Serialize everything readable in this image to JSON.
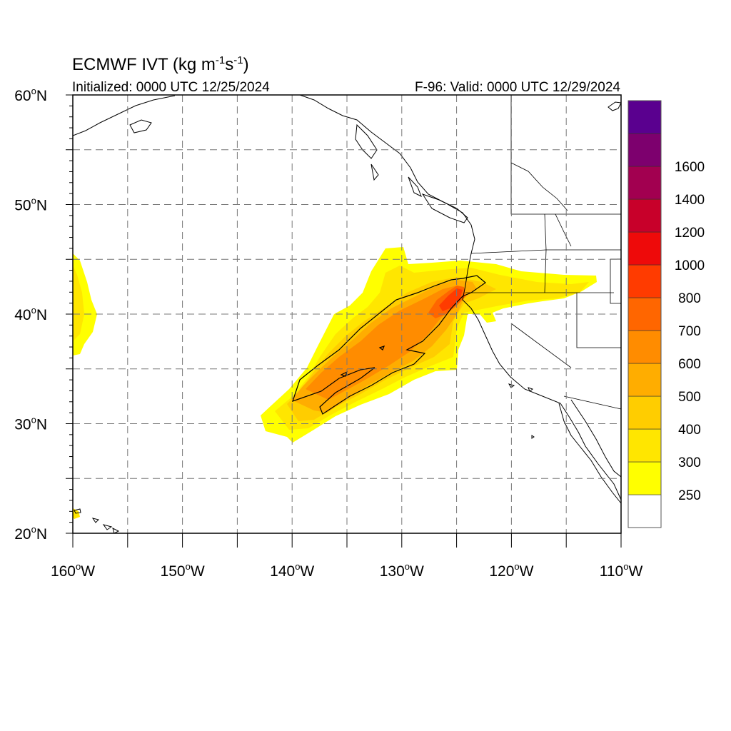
{
  "title": {
    "main": "ECMWF IVT (kg m",
    "sup1": "-1",
    "mid": "s",
    "sup2": "-1",
    "close": ")"
  },
  "subtitle_left": "Initialized: 0000 UTC 12/25/2024",
  "subtitle_right": "F-96: Valid: 0000 UTC 12/29/2024",
  "lat_labels": [
    {
      "value": 60,
      "main": "60",
      "deg": "o",
      "hemi": "N"
    },
    {
      "value": 50,
      "main": "50",
      "deg": "o",
      "hemi": "N"
    },
    {
      "value": 40,
      "main": "40",
      "deg": "o",
      "hemi": "N"
    },
    {
      "value": 30,
      "main": "30",
      "deg": "o",
      "hemi": "N"
    },
    {
      "value": 20,
      "main": "20",
      "deg": "o",
      "hemi": "N"
    }
  ],
  "lon_labels": [
    {
      "value": -160,
      "main": "160",
      "deg": "o",
      "hemi": "W"
    },
    {
      "value": -150,
      "main": "150",
      "deg": "o",
      "hemi": "W"
    },
    {
      "value": -140,
      "main": "140",
      "deg": "o",
      "hemi": "W"
    },
    {
      "value": -130,
      "main": "130",
      "deg": "o",
      "hemi": "W"
    },
    {
      "value": -120,
      "main": "120",
      "deg": "o",
      "hemi": "W"
    },
    {
      "value": -110,
      "main": "110",
      "deg": "o",
      "hemi": "W"
    }
  ],
  "colorbar": {
    "colors_bottom_to_top": [
      "#ffffff",
      "#ffff00",
      "#ffe600",
      "#ffcd00",
      "#ffad00",
      "#ff8c00",
      "#ff6600",
      "#ff3b00",
      "#ee0a0a",
      "#c8002a",
      "#a20050",
      "#7d006e",
      "#5a008f"
    ],
    "labels": [
      "250",
      "300",
      "400",
      "500",
      "600",
      "700",
      "800",
      "1000",
      "1200",
      "1400",
      "1600"
    ]
  },
  "chart_data": {
    "type": "heatmap",
    "title": "ECMWF IVT (kg m-1s-1)",
    "lat_range": [
      20,
      60
    ],
    "lon_range": [
      -160,
      -110
    ],
    "grid": true,
    "contour_level": 500,
    "bins": [
      250,
      300,
      400,
      500,
      600,
      700,
      800,
      1000,
      1200,
      1400,
      1600
    ],
    "max_region": {
      "lon": -124.3,
      "lat": 42,
      "bin": "800-1000"
    },
    "plume_axis": [
      [
        -140,
        32
      ],
      [
        -133,
        36
      ],
      [
        -128,
        39
      ],
      [
        -124.5,
        42.5
      ],
      [
        -112,
        43
      ]
    ]
  }
}
